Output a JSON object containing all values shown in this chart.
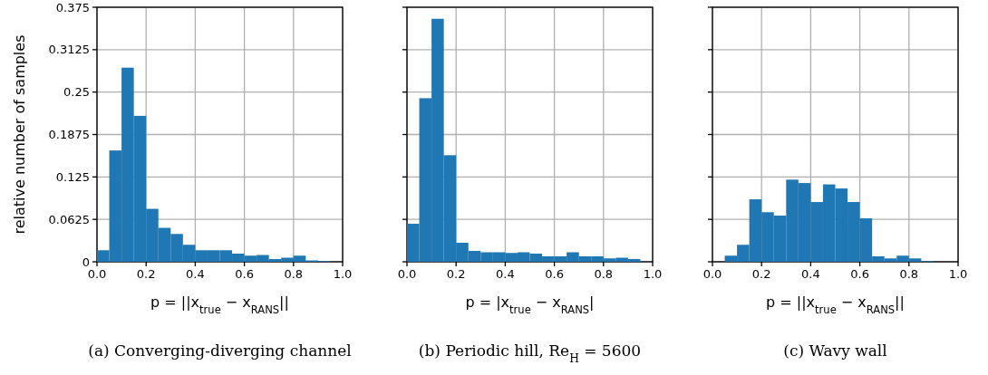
{
  "chart_data": [
    {
      "type": "histogram",
      "title": "(a) Converging-diverging channel",
      "xlabel": "p = ||x$_{true}$ − x$_{RANS}$||",
      "ylabel": "relative number of samples",
      "color": "#1f77b4",
      "grid": true,
      "bins": [
        0,
        0.05,
        0.1,
        0.15,
        0.2,
        0.25,
        0.3,
        0.35,
        0.4,
        0.45,
        0.5,
        0.55,
        0.6,
        0.65,
        0.7,
        0.75,
        0.8,
        0.85,
        0.9,
        0.95,
        1.0
      ],
      "values": [
        0.017,
        0.164,
        0.286,
        0.215,
        0.078,
        0.05,
        0.041,
        0.025,
        0.017,
        0.017,
        0.017,
        0.012,
        0.009,
        0.01,
        0.004,
        0.006,
        0.009,
        0.002,
        0.001,
        0
      ],
      "xlim": [
        0,
        1
      ],
      "xticks": [
        {
          "value": 0,
          "label": "0.0"
        },
        {
          "value": 0.2,
          "label": "0.2"
        },
        {
          "value": 0.4,
          "label": "0.4"
        },
        {
          "value": 0.6,
          "label": "0.6"
        },
        {
          "value": 0.8,
          "label": "0.8"
        },
        {
          "value": 1,
          "label": "1.0"
        }
      ],
      "ylim": [
        0,
        0.375
      ],
      "yticks": [
        0,
        0.0625,
        0.125,
        0.1875,
        0.25,
        0.3125,
        0.375
      ]
    },
    {
      "type": "histogram",
      "title": "(b) Periodic hill, Re$_{H}$ = 5600",
      "xlabel": "p = |x$_{true}$ − x$_{RANS}$|",
      "color": "#1f77b4",
      "grid": true,
      "tick_labels": "x",
      "bins": [
        0,
        0.05,
        0.1,
        0.15,
        0.2,
        0.25,
        0.3,
        0.35,
        0.4,
        0.45,
        0.5,
        0.55,
        0.6,
        0.65,
        0.7,
        0.75,
        0.8,
        0.85,
        0.9,
        0.95,
        1.0
      ],
      "values": [
        0.056,
        0.241,
        0.358,
        0.157,
        0.028,
        0.016,
        0.014,
        0.014,
        0.013,
        0.014,
        0.012,
        0.008,
        0.008,
        0.014,
        0.008,
        0.008,
        0.005,
        0.006,
        0.004,
        0
      ],
      "xlim": [
        0,
        1
      ],
      "xticks": [
        {
          "value": 0,
          "label": "0.0"
        },
        {
          "value": 0.2,
          "label": "0.2"
        },
        {
          "value": 0.4,
          "label": "0.4"
        },
        {
          "value": 0.6,
          "label": "0.6"
        },
        {
          "value": 0.8,
          "label": "0.8"
        },
        {
          "value": 1,
          "label": "1.0"
        }
      ],
      "ylim": [
        0,
        0.375
      ],
      "yticks": [
        0,
        0.0625,
        0.125,
        0.1875,
        0.25,
        0.3125,
        0.375
      ]
    },
    {
      "type": "histogram",
      "title": "(c) Wavy wall",
      "xlabel": "p = ||x$_{true}$ − x$_{RANS}$||",
      "color": "#1f77b4",
      "grid": true,
      "tick_labels": "x",
      "bins": [
        0,
        0.05,
        0.1,
        0.15,
        0.2,
        0.25,
        0.3,
        0.35,
        0.4,
        0.45,
        0.5,
        0.55,
        0.6,
        0.65,
        0.7,
        0.75,
        0.8,
        0.85,
        0.9,
        0.95,
        1.0
      ],
      "values": [
        0,
        0.009,
        0.025,
        0.092,
        0.073,
        0.068,
        0.121,
        0.116,
        0.088,
        0.114,
        0.108,
        0.088,
        0.064,
        0.008,
        0.005,
        0.009,
        0.005,
        0.001,
        0,
        0
      ],
      "xlim": [
        0,
        1
      ],
      "xticks": [
        {
          "value": 0,
          "label": "0.0"
        },
        {
          "value": 0.2,
          "label": "0.2"
        },
        {
          "value": 0.4,
          "label": "0.4"
        },
        {
          "value": 0.6,
          "label": "0.6"
        },
        {
          "value": 0.8,
          "label": "0.8"
        },
        {
          "value": 1,
          "label": "1.0"
        }
      ],
      "ylim": [
        0,
        0.375
      ],
      "yticks": [
        0,
        0.0625,
        0.125,
        0.1875,
        0.25,
        0.3125,
        0.375
      ]
    }
  ]
}
